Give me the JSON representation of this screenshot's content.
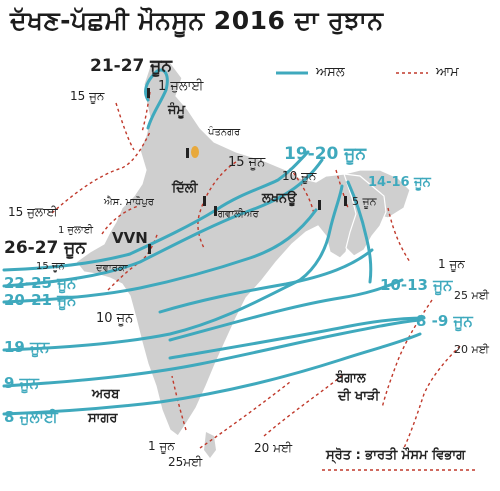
{
  "title": "ਦੱਖਣ-ਪੱਛਮੀ ਮੌਨਸੂਨ 2016 ਦਾ ਰੁਝਾਨ",
  "legend": {
    "actual": "ਅਸਲ",
    "normal": "ਆਮ",
    "actual_color": "#3fa9bd",
    "normal_color": "#c0392b"
  },
  "source": "ਸ੍ਰੋਤ : ਭਾਰਤੀ ਮੌਸਮ ਵਿਭਾਗ",
  "places": {
    "jammu": "ਜੰਮੂ",
    "pantnagar": "ਪੰਤਨਗਰ",
    "delhi": "ਦਿੱਲੀ",
    "sawai_madhopur": "ਐਸ. ਮਾਧੋਪੁਰ",
    "lucknow": "ਲਖਨਊ",
    "gwalior": "ਗਵਾਲੀਅਰ",
    "vvn": "VVN",
    "dwarka": "ਦਵਾਰਕਾ",
    "arabian_sea_1": "ਅਰਬ",
    "arabian_sea_2": "ਸਾਗਰ",
    "bay_of_bengal_1": "ਬੰਗਾਲ",
    "bay_of_bengal_2": "ਦੀ ਖਾੜੀ"
  },
  "dates": {
    "d_21_27_june": "21-27 ਜੂਨ",
    "d_1_july_top": "1 ਜੁਲਾਈ",
    "d_15_june_nw": "15 ਜੂਨ",
    "d_15_july": "15 ਜੁਲਾਈ",
    "d_1_july_w": "1 ਜੁਲਾਈ",
    "d_26_27_june": "26-27 ਜੂਨ",
    "d_15_june_w": "15 ਜੂਨ",
    "d_22_25_june": "22-25 ਜੂਨ",
    "d_20_21_june": "20-21 ਜੂਨ",
    "d_10_june_w": "10 ਜੂਨ",
    "d_19_june": "19 ਜੂਨ",
    "d_9_june": "9 ਜੂਨ",
    "d_8_july": "8 ਜੁਲਾਈ",
    "d_15_june_c": "15 ਜੂਨ",
    "d_19_20_june": "19-20 ਜੂਨ",
    "d_10_june_ne": "10 ਜੂਨ",
    "d_14_16_june": "14-16 ਜੂਨ",
    "d_5_june": "5 ਜੂਨ",
    "d_1_june_ne": "1 ਜੂਨ",
    "d_10_13_june": "10-13 ਜੂਨ",
    "d_25_may_e": "25 ਮਈ",
    "d_8_9_june": "8 -9 ਜੂਨ",
    "d_20_may_e": "20 ਮਈ",
    "d_1_june_s": "1 ਜੂਨ",
    "d_25_may_s": "25ਮਈ",
    "d_20_may_s": "20 ਮਈ"
  }
}
